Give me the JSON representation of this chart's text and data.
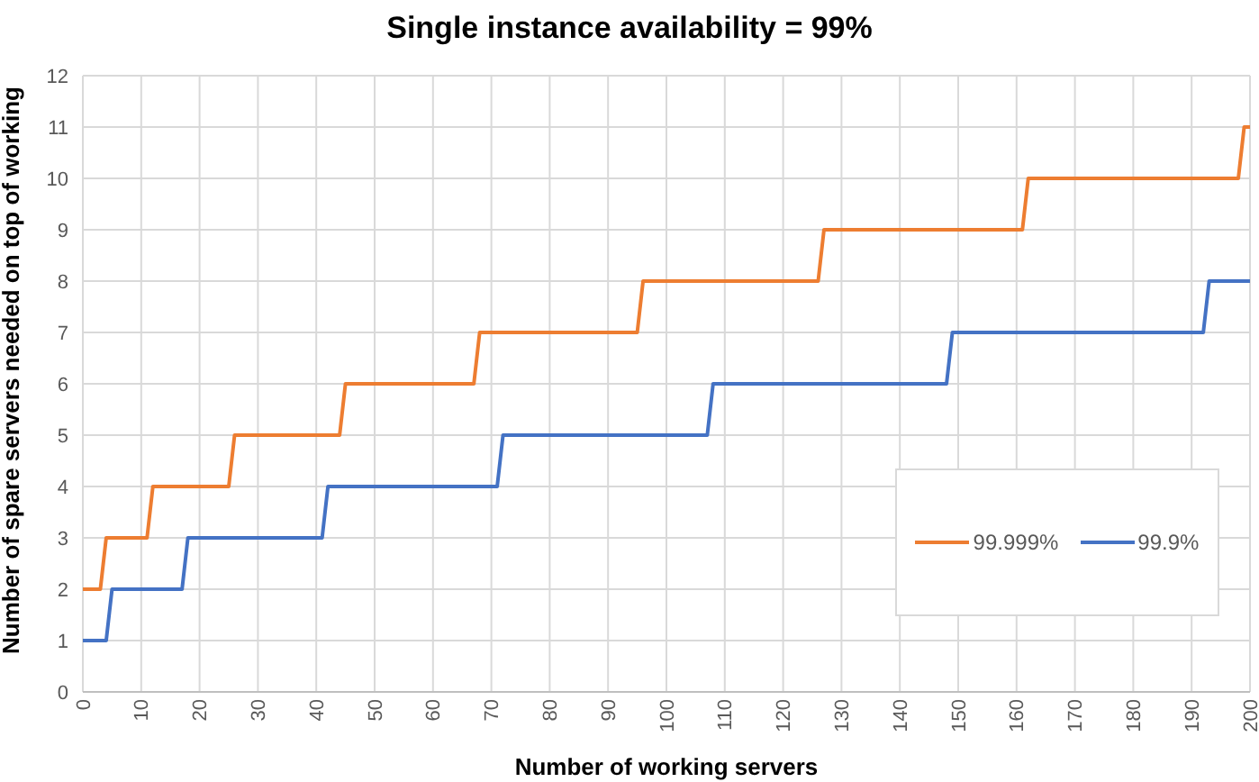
{
  "chart_data": {
    "type": "line",
    "title": "Single instance availability = 99%",
    "xlabel": "Number of working servers",
    "ylabel": "Number of spare servers needed on top of working",
    "xlim": [
      0,
      200
    ],
    "xticks": [
      0,
      10,
      20,
      30,
      40,
      50,
      60,
      70,
      80,
      90,
      100,
      110,
      120,
      130,
      140,
      150,
      160,
      170,
      180,
      190,
      200
    ],
    "ylim": [
      0,
      12
    ],
    "yticks": [
      0,
      1,
      2,
      3,
      4,
      5,
      6,
      7,
      8,
      9,
      10,
      11,
      12
    ],
    "grid": true,
    "legend": "right",
    "marker": "none",
    "line_style": "solid",
    "series": [
      {
        "name": "99.999%",
        "color": "#ed7d31",
        "x": [
          0,
          3,
          4,
          11,
          12,
          25,
          26,
          44,
          45,
          67,
          68,
          95,
          96,
          126,
          127,
          161,
          162,
          198,
          199,
          200
        ],
        "values": [
          2,
          2,
          3,
          3,
          4,
          4,
          5,
          5,
          6,
          6,
          7,
          7,
          8,
          8,
          9,
          9,
          10,
          10,
          11,
          11
        ]
      },
      {
        "name": "99.9%",
        "color": "#4472c4",
        "x": [
          0,
          4,
          5,
          17,
          18,
          41,
          42,
          71,
          72,
          107,
          108,
          148,
          149,
          192,
          193,
          200
        ],
        "values": [
          1,
          1,
          2,
          2,
          3,
          3,
          4,
          4,
          5,
          5,
          6,
          6,
          7,
          7,
          8,
          8
        ]
      }
    ]
  }
}
